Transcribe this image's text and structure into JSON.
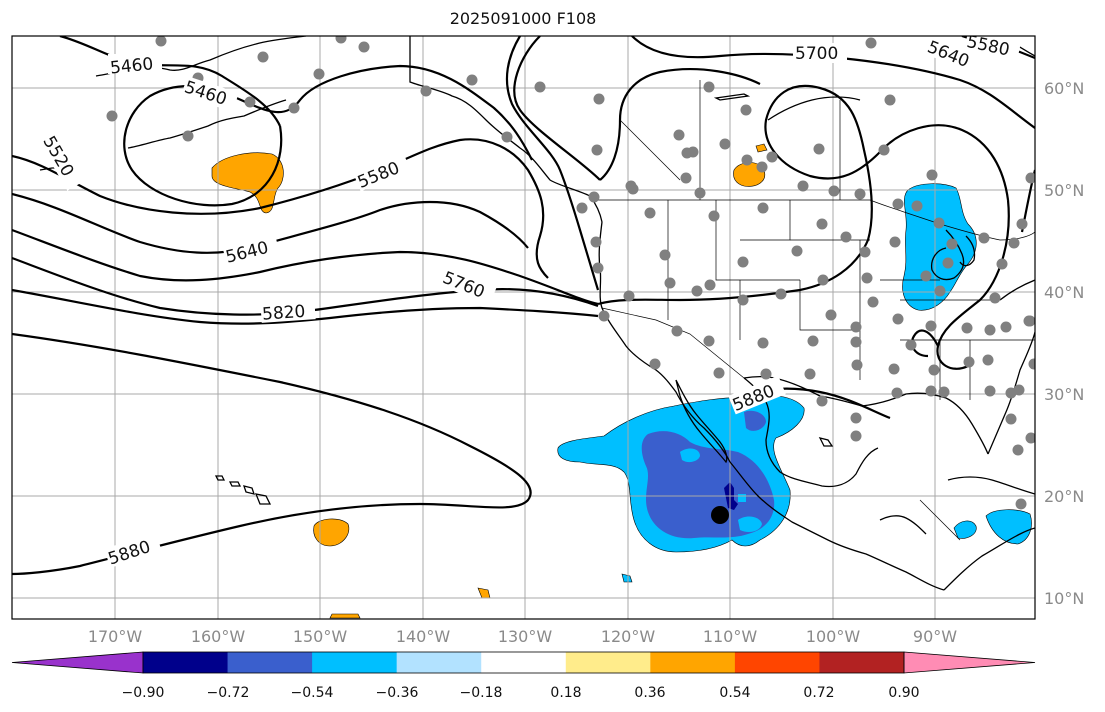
{
  "title": "2025091000 F108",
  "lat_labels": [
    "60°N",
    "50°N",
    "40°N",
    "30°N",
    "20°N",
    "10°N"
  ],
  "lon_labels": [
    "170°W",
    "160°W",
    "150°W",
    "140°W",
    "130°W",
    "120°W",
    "110°W",
    "100°W",
    "90°W"
  ],
  "contour_labels": [
    "5460",
    "5460",
    "5520",
    "5580",
    "5640",
    "5700",
    "5640",
    "5580",
    "5760",
    "5820",
    "5880",
    "5880"
  ],
  "colorbar": {
    "ticks": [
      "−0.90",
      "−0.72",
      "−0.54",
      "−0.36",
      "−0.18",
      "0.18",
      "0.36",
      "0.54",
      "0.72",
      "0.90"
    ],
    "colors": [
      "#9932cc",
      "#00008b",
      "#3a5fcd",
      "#00bfff",
      "#b2e2ff",
      "#ffffff",
      "#ffec8b",
      "#ffa500",
      "#ff4500",
      "#b22222",
      "#ff8cb4"
    ]
  },
  "colors": {
    "station": "#808080",
    "marker": "#000000",
    "grid": "#a8a8a8"
  }
}
